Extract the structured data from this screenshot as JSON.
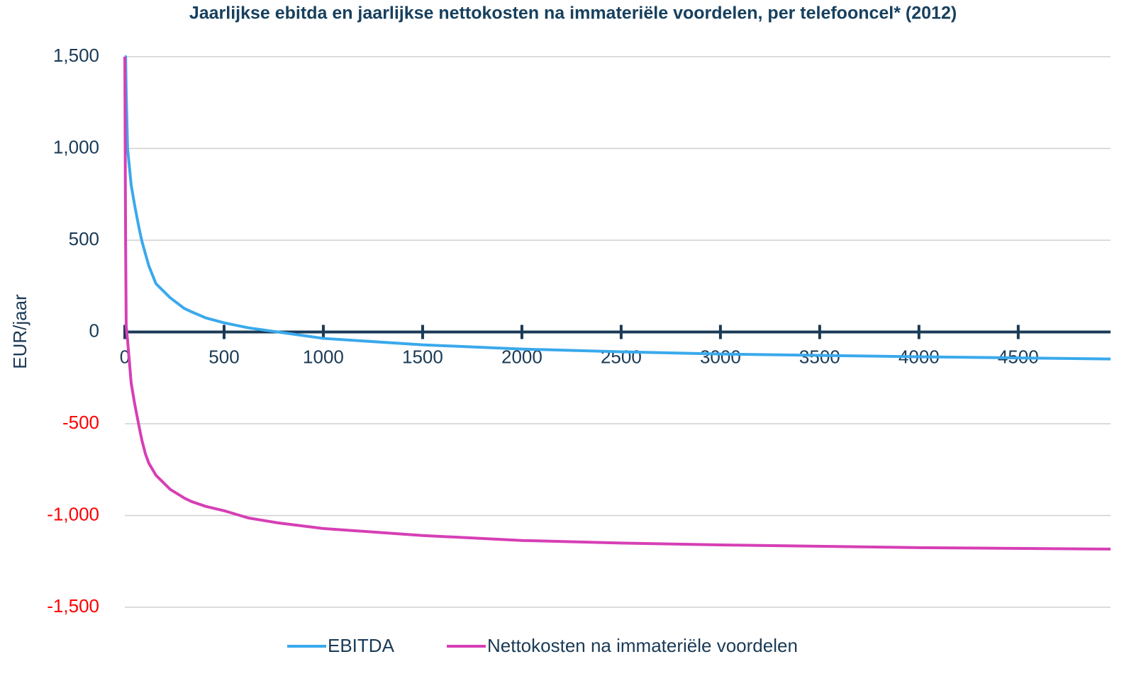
{
  "chart_data": {
    "type": "line",
    "title": "Jaarlijkse ebitda en jaarlijkse nettokosten na immateriële voordelen, per telefooncel* (2012)",
    "y_label": "EUR/jaar",
    "x": [
      0,
      4,
      7,
      14,
      32,
      50,
      71,
      86,
      104,
      121,
      157,
      229,
      300,
      336,
      407,
      500,
      621,
      771,
      1000,
      1500,
      2000,
      2500,
      3000,
      4000,
      4965
    ],
    "series": [
      {
        "name": "EBITDA",
        "color": "#3aa9ec",
        "values": [
          1500,
          1500,
          1300,
          1000,
          800,
          688,
          570,
          495,
          425,
          360,
          263,
          186,
          128,
          110,
          77,
          50,
          23,
          0,
          -35,
          -70,
          -93,
          -108,
          -120,
          -135,
          -147
        ]
      },
      {
        "name": "Nettokosten na immateriële voordelen",
        "color": "#d63fb5",
        "values": [
          1500,
          500,
          30,
          -46,
          -278,
          -394,
          -510,
          -590,
          -665,
          -715,
          -781,
          -858,
          -905,
          -924,
          -950,
          -974,
          -1013,
          -1040,
          -1071,
          -1109,
          -1136,
          -1150,
          -1160,
          -1175,
          -1183
        ]
      }
    ],
    "xlim": [
      0,
      4965
    ],
    "xticks": [
      0,
      500,
      1000,
      1500,
      2000,
      2500,
      3000,
      3500,
      4000,
      4500
    ],
    "ylim": [
      -1500,
      1500
    ],
    "yticks": [
      {
        "value": -1500,
        "label": "-1,500"
      },
      {
        "value": -1000,
        "label": "-1,000"
      },
      -500,
      0,
      500,
      {
        "value": 1000,
        "label": "1,000"
      },
      {
        "value": 1500,
        "label": "1,500"
      }
    ],
    "grid": true,
    "tick_color": "#1a3a56",
    "negative_tick_color": "#ff0000",
    "legend": "bottom"
  }
}
